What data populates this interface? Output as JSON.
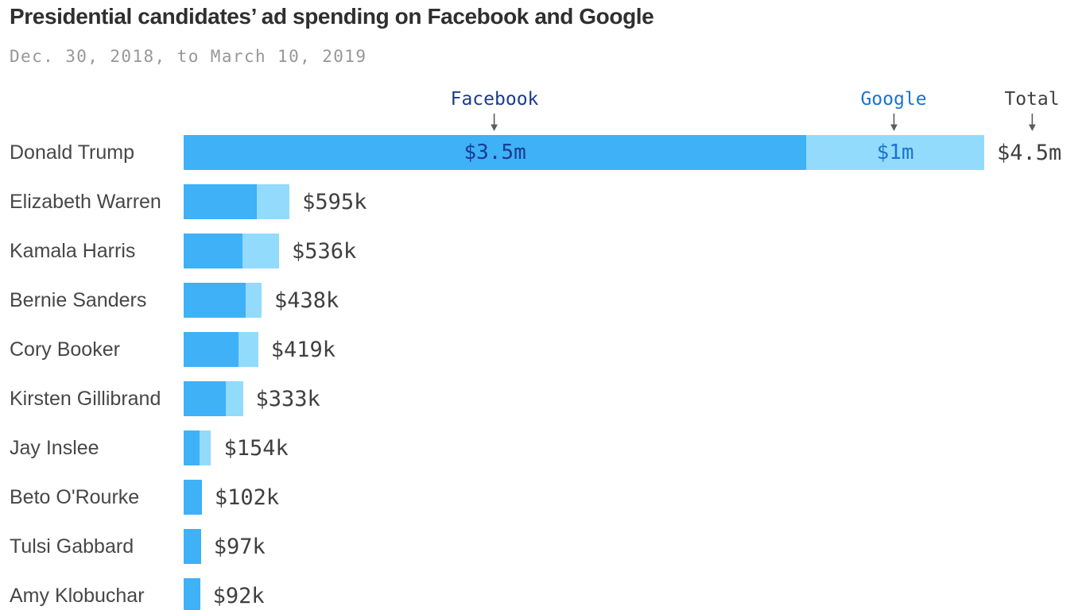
{
  "chart": {
    "title": "Presidential candidates’ ad spending on Facebook and Google",
    "subtitle": "Dec. 30, 2018, to March 10, 2019",
    "column_headers": {
      "facebook": "Facebook",
      "google": "Google",
      "total": "Total"
    }
  },
  "colors": {
    "facebook_bar": "#3eb1f7",
    "google_bar": "#92dbfc",
    "facebook_text": "#1a3c8f",
    "google_text": "#1b73d0",
    "total_text": "#3f3f3f",
    "arrow": "#5c5c5c"
  },
  "chart_data": {
    "type": "bar",
    "orientation": "horizontal",
    "stacked": true,
    "title": "Presidential candidates’ ad spending on Facebook and Google",
    "subtitle": "Dec. 30, 2018, to March 10, 2019",
    "series_names": [
      "Facebook",
      "Google"
    ],
    "unit": "USD thousands",
    "xlim_k": [
      0,
      4500
    ],
    "grid": false,
    "legend_position": "top-inline-arrows",
    "rows": [
      {
        "name": "Donald Trump",
        "facebook_k": 3500,
        "google_k": 1000,
        "total_label": "$4.5m",
        "facebook_label": "$3.5m",
        "google_label": "$1m"
      },
      {
        "name": "Elizabeth Warren",
        "facebook_k": 410,
        "google_k": 185,
        "total_label": "$595k",
        "facebook_label": "",
        "google_label": ""
      },
      {
        "name": "Kamala Harris",
        "facebook_k": 331,
        "google_k": 205,
        "total_label": "$536k",
        "facebook_label": "",
        "google_label": ""
      },
      {
        "name": "Bernie Sanders",
        "facebook_k": 350,
        "google_k": 88,
        "total_label": "$438k",
        "facebook_label": "",
        "google_label": ""
      },
      {
        "name": "Cory Booker",
        "facebook_k": 307,
        "google_k": 112,
        "total_label": "$419k",
        "facebook_label": "",
        "google_label": ""
      },
      {
        "name": "Kirsten Gillibrand",
        "facebook_k": 235,
        "google_k": 98,
        "total_label": "$333k",
        "facebook_label": "",
        "google_label": ""
      },
      {
        "name": "Jay Inslee",
        "facebook_k": 89,
        "google_k": 65,
        "total_label": "$154k",
        "facebook_label": "",
        "google_label": ""
      },
      {
        "name": "Beto O'Rourke",
        "facebook_k": 102,
        "google_k": 0,
        "total_label": "$102k",
        "facebook_label": "",
        "google_label": ""
      },
      {
        "name": "Tulsi Gabbard",
        "facebook_k": 97,
        "google_k": 0,
        "total_label": "$97k",
        "facebook_label": "",
        "google_label": ""
      },
      {
        "name": "Amy Klobuchar",
        "facebook_k": 92,
        "google_k": 0,
        "total_label": "$92k",
        "facebook_label": "",
        "google_label": ""
      }
    ]
  }
}
